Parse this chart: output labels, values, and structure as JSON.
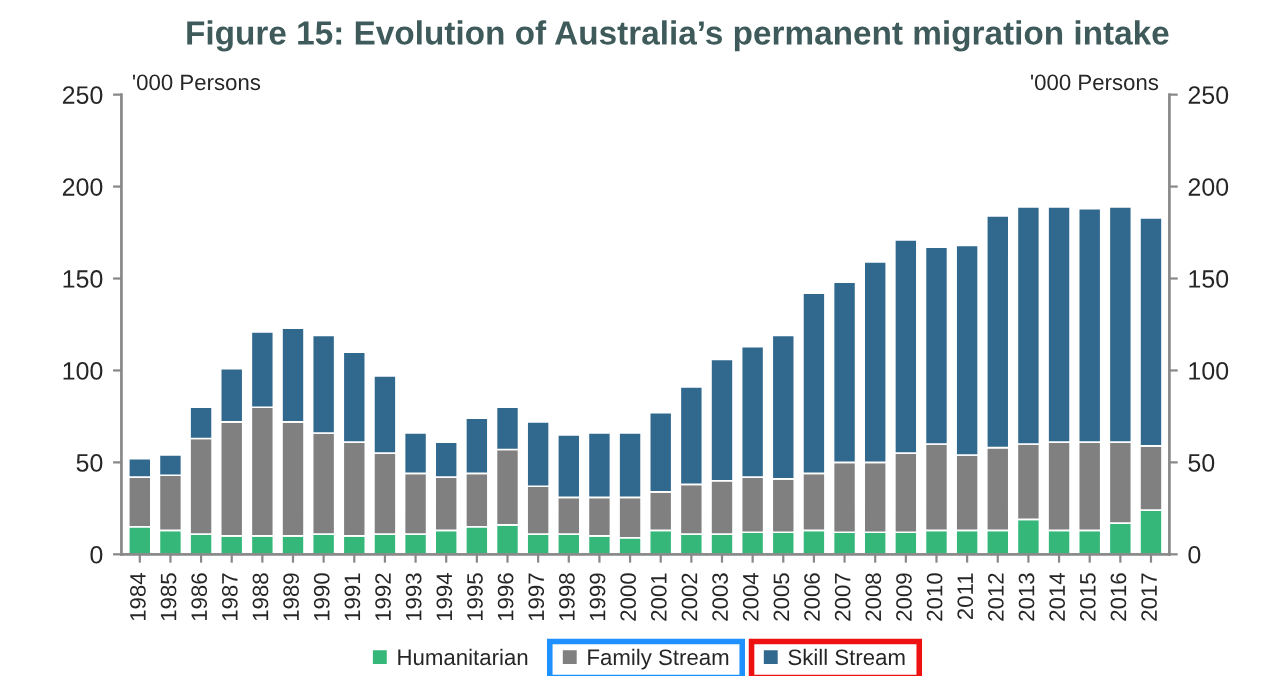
{
  "chart_data": {
    "type": "bar",
    "title": "Figure 15: Evolution of Australia’s permanent migration intake",
    "ylabel": "'000 Persons",
    "y2label": "'000 Persons",
    "categories": [
      "1984",
      "1985",
      "1986",
      "1987",
      "1988",
      "1989",
      "1990",
      "1991",
      "1992",
      "1993",
      "1994",
      "1995",
      "1996",
      "1997",
      "1998",
      "1999",
      "2000",
      "2001",
      "2002",
      "2003",
      "2004",
      "2005",
      "2006",
      "2007",
      "2008",
      "2009",
      "2010",
      "2011",
      "2012",
      "2013",
      "2014",
      "2015",
      "2016",
      "2017"
    ],
    "stacked": true,
    "series": [
      {
        "name": "Humanitarian",
        "color": "#35b779",
        "values": [
          15,
          13,
          11,
          10,
          10,
          10,
          11,
          10,
          11,
          11,
          13,
          15,
          16,
          11,
          11,
          10,
          9,
          13,
          11,
          11,
          12,
          12,
          13,
          12,
          12,
          12,
          13,
          13,
          13,
          19,
          13,
          13,
          17,
          24
        ]
      },
      {
        "name": "Family Stream",
        "color": "#808080",
        "values": [
          27,
          30,
          52,
          62,
          70,
          62,
          55,
          51,
          44,
          33,
          29,
          29,
          41,
          26,
          20,
          21,
          22,
          21,
          27,
          29,
          30,
          29,
          31,
          38,
          38,
          43,
          47,
          41,
          45,
          41,
          48,
          48,
          44,
          35
        ]
      },
      {
        "name": "Skill Stream",
        "color": "#31688e",
        "values": [
          10,
          11,
          17,
          29,
          41,
          51,
          53,
          49,
          42,
          22,
          19,
          30,
          23,
          35,
          34,
          35,
          35,
          43,
          53,
          66,
          71,
          78,
          98,
          98,
          109,
          116,
          107,
          114,
          126,
          129,
          128,
          127,
          128,
          124
        ]
      }
    ],
    "ylim": [
      0,
      250
    ],
    "yticks": [
      0,
      50,
      100,
      150,
      200,
      250
    ],
    "y2lim": [
      0,
      250
    ],
    "y2ticks": [
      0,
      50,
      100,
      150,
      200,
      250
    ],
    "grid": false,
    "legend": "bottom"
  }
}
